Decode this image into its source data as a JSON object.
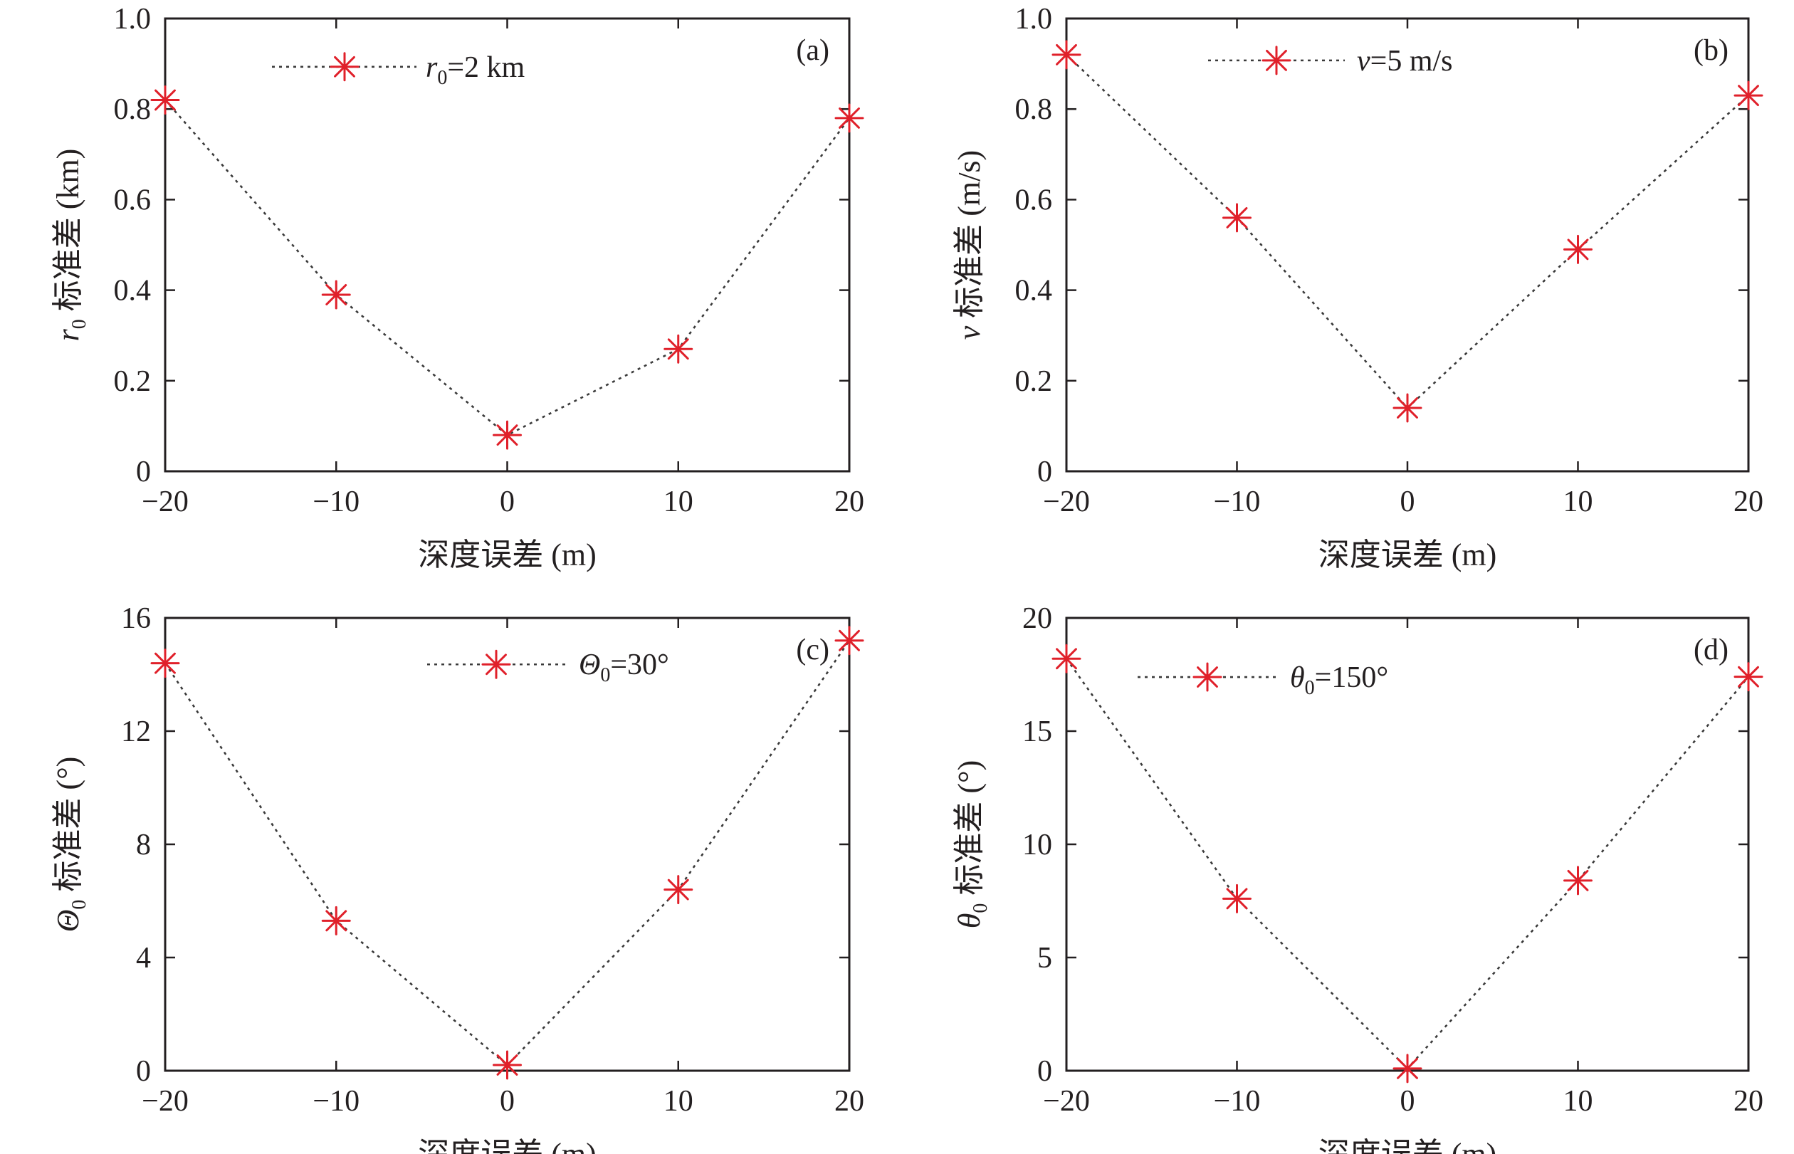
{
  "chart_data": [
    {
      "type": "line",
      "panel": "(a)",
      "xlabel": "深度误差 (m)",
      "ylabel": {
        "symbol": "r",
        "subscript": "0",
        "suffix": " 标准差 (km)"
      },
      "x": [
        -20,
        -10,
        0,
        10,
        20
      ],
      "xlim": [
        -20,
        20
      ],
      "ylim": [
        0,
        1.0
      ],
      "xticks": [
        -20,
        -10,
        0,
        10,
        20
      ],
      "xtick_labels": [
        "−20",
        "−10",
        "0",
        "10",
        "20"
      ],
      "yticks": [
        0,
        0.2,
        0.4,
        0.6,
        0.8,
        1.0
      ],
      "ytick_labels": [
        "0",
        "0.2",
        "0.4",
        "0.6",
        "0.8",
        "1.0"
      ],
      "series": [
        {
          "values": [
            0.82,
            0.39,
            0.08,
            0.27,
            0.78
          ]
        }
      ],
      "legend": {
        "symbol": "r",
        "subscript": "0",
        "suffix": "=2 km",
        "position": "top-center"
      },
      "grid": false
    },
    {
      "type": "line",
      "panel": "(b)",
      "xlabel": "深度误差 (m)",
      "ylabel": {
        "symbol": "v",
        "subscript": "",
        "suffix": " 标准差 (m/s)"
      },
      "x": [
        -20,
        -10,
        0,
        10,
        20
      ],
      "xlim": [
        -20,
        20
      ],
      "ylim": [
        0,
        1.0
      ],
      "xticks": [
        -20,
        -10,
        0,
        10,
        20
      ],
      "xtick_labels": [
        "−20",
        "−10",
        "0",
        "10",
        "20"
      ],
      "yticks": [
        0,
        0.2,
        0.4,
        0.6,
        0.8,
        1.0
      ],
      "ytick_labels": [
        "0",
        "0.2",
        "0.4",
        "0.6",
        "0.8",
        "1.0"
      ],
      "series": [
        {
          "values": [
            0.92,
            0.56,
            0.14,
            0.49,
            0.83
          ]
        }
      ],
      "legend": {
        "symbol": "v",
        "subscript": "",
        "suffix": "=5 m/s",
        "position": "top-center"
      },
      "grid": false
    },
    {
      "type": "line",
      "panel": "(c)",
      "xlabel": "深度误差 (m)",
      "ylabel": {
        "symbol": "Θ",
        "subscript": "0",
        "suffix": " 标准差 (°)"
      },
      "x": [
        -20,
        -10,
        0,
        10,
        20
      ],
      "xlim": [
        -20,
        20
      ],
      "ylim": [
        0,
        16
      ],
      "xticks": [
        -20,
        -10,
        0,
        10,
        20
      ],
      "xtick_labels": [
        "−20",
        "−10",
        "0",
        "10",
        "20"
      ],
      "yticks": [
        0,
        4,
        8,
        12,
        16
      ],
      "ytick_labels": [
        "0",
        "4",
        "8",
        "12",
        "16"
      ],
      "series": [
        {
          "values": [
            14.4,
            5.3,
            0.2,
            6.4,
            15.2
          ]
        }
      ],
      "legend": {
        "symbol": "Θ",
        "subscript": "0",
        "suffix": "=30°",
        "position": "top-center"
      },
      "grid": false
    },
    {
      "type": "line",
      "panel": "(d)",
      "xlabel": "深度误差 (m)",
      "ylabel": {
        "symbol": "θ",
        "subscript": "0",
        "suffix": " 标准差 (°)"
      },
      "x": [
        -20,
        -10,
        0,
        10,
        20
      ],
      "xlim": [
        -20,
        20
      ],
      "ylim": [
        0,
        20
      ],
      "xticks": [
        -20,
        -10,
        0,
        10,
        20
      ],
      "xtick_labels": [
        "−20",
        "−10",
        "0",
        "10",
        "20"
      ],
      "yticks": [
        0,
        5,
        10,
        15,
        20
      ],
      "ytick_labels": [
        "0",
        "5",
        "10",
        "15",
        "20"
      ],
      "series": [
        {
          "values": [
            18.2,
            7.6,
            0.1,
            8.4,
            17.4
          ]
        }
      ],
      "legend": {
        "symbol": "θ",
        "subscript": "0",
        "suffix": "=150°",
        "position": "top-left"
      },
      "grid": false
    }
  ],
  "colors": {
    "marker": "#e0202a",
    "line": "#3a3a3a",
    "axes": "#231f20"
  }
}
